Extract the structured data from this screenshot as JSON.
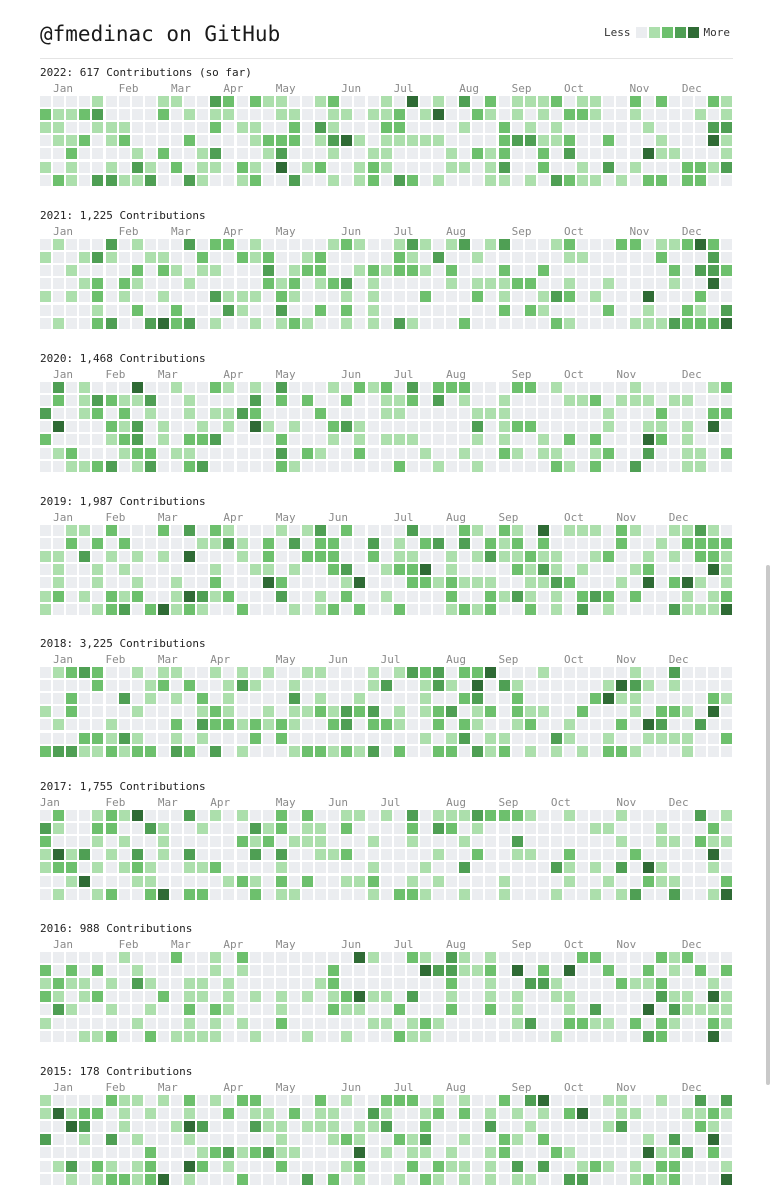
{
  "header": {
    "title": "@fmedinac on GitHub",
    "legend_less": "Less",
    "legend_more": "More"
  },
  "colors": [
    "#ebedf0",
    "#acdfac",
    "#6dc06d",
    "#4f9f54",
    "#2f6b35"
  ],
  "years": [
    {
      "label": "2022: 617 Contributions (so far)",
      "months": [
        [
          "Jan",
          1
        ],
        [
          "Feb",
          6
        ],
        [
          "Mar",
          10
        ],
        [
          "Apr",
          14
        ],
        [
          "May",
          18
        ],
        [
          "Jun",
          23
        ],
        [
          "Jul",
          27
        ],
        [
          "Aug",
          32
        ],
        [
          "Sep",
          36
        ],
        [
          "Oct",
          40
        ],
        [
          "Nov",
          45
        ],
        [
          "Dec",
          49
        ]
      ]
    },
    {
      "label": "2021: 1,225 Contributions",
      "months": [
        [
          "Jan",
          1
        ],
        [
          "Feb",
          6
        ],
        [
          "Mar",
          10
        ],
        [
          "Apr",
          14
        ],
        [
          "May",
          18
        ],
        [
          "Jun",
          23
        ],
        [
          "Jul",
          27
        ],
        [
          "Aug",
          31
        ],
        [
          "Sep",
          36
        ],
        [
          "Oct",
          40
        ],
        [
          "Nov",
          45
        ],
        [
          "Dec",
          49
        ]
      ]
    },
    {
      "label": "2020: 1,468 Contributions",
      "months": [
        [
          "Jan",
          1
        ],
        [
          "Feb",
          5
        ],
        [
          "Mar",
          9
        ],
        [
          "Apr",
          14
        ],
        [
          "May",
          18
        ],
        [
          "Jun",
          23
        ],
        [
          "Jul",
          27
        ],
        [
          "Aug",
          31
        ],
        [
          "Sep",
          36
        ],
        [
          "Oct",
          40
        ],
        [
          "Nov",
          44
        ],
        [
          "Dec",
          49
        ]
      ]
    },
    {
      "label": "2019: 1,987 Contributions",
      "months": [
        [
          "Jan",
          1
        ],
        [
          "Feb",
          5
        ],
        [
          "Mar",
          9
        ],
        [
          "Apr",
          14
        ],
        [
          "May",
          18
        ],
        [
          "Jun",
          22
        ],
        [
          "Jul",
          27
        ],
        [
          "Aug",
          31
        ],
        [
          "Sep",
          35
        ],
        [
          "Oct",
          40
        ],
        [
          "Nov",
          44
        ],
        [
          "Dec",
          48
        ]
      ]
    },
    {
      "label": "2018: 3,225 Contributions",
      "months": [
        [
          "Jan",
          1
        ],
        [
          "Feb",
          5
        ],
        [
          "Mar",
          9
        ],
        [
          "Apr",
          13
        ],
        [
          "May",
          18
        ],
        [
          "Jun",
          22
        ],
        [
          "Jul",
          26
        ],
        [
          "Aug",
          31
        ],
        [
          "Sep",
          35
        ],
        [
          "Oct",
          40
        ],
        [
          "Nov",
          44
        ],
        [
          "Dec",
          48
        ]
      ]
    },
    {
      "label": "2017: 1,755 Contributions",
      "months": [
        [
          "Jan",
          0
        ],
        [
          "Feb",
          5
        ],
        [
          "Mar",
          9
        ],
        [
          "Apr",
          13
        ],
        [
          "May",
          18
        ],
        [
          "Jun",
          22
        ],
        [
          "Jul",
          26
        ],
        [
          "Aug",
          31
        ],
        [
          "Sep",
          35
        ],
        [
          "Oct",
          39
        ],
        [
          "Nov",
          44
        ],
        [
          "Dec",
          48
        ]
      ]
    },
    {
      "label": "2016: 988 Contributions",
      "months": [
        [
          "Jan",
          1
        ],
        [
          "Feb",
          6
        ],
        [
          "Mar",
          10
        ],
        [
          "Apr",
          14
        ],
        [
          "May",
          18
        ],
        [
          "Jun",
          23
        ],
        [
          "Jul",
          27
        ],
        [
          "Aug",
          31
        ],
        [
          "Sep",
          36
        ],
        [
          "Oct",
          40
        ],
        [
          "Nov",
          44
        ],
        [
          "Dec",
          49
        ]
      ]
    },
    {
      "label": "2015: 178 Contributions",
      "months": [
        [
          "Jan",
          1
        ],
        [
          "Feb",
          5
        ],
        [
          "Mar",
          9
        ],
        [
          "Apr",
          14
        ],
        [
          "May",
          18
        ],
        [
          "Jun",
          23
        ],
        [
          "Jul",
          27
        ],
        [
          "Aug",
          31
        ],
        [
          "Sep",
          36
        ],
        [
          "Oct",
          40
        ],
        [
          "Nov",
          44
        ],
        [
          "Dec",
          49
        ]
      ]
    }
  ]
}
